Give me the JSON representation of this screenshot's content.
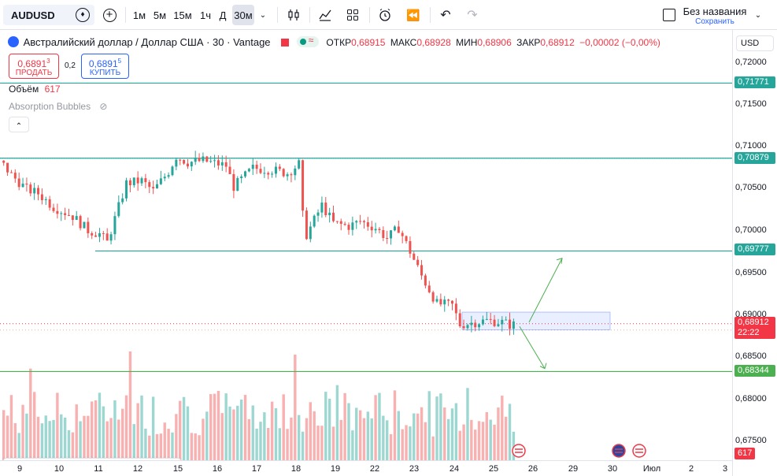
{
  "toolbar": {
    "symbol": "AUDUSD",
    "intervals": [
      "1м",
      "5м",
      "15м",
      "1ч",
      "Д",
      "30м"
    ],
    "active_interval": "30м",
    "layout_name": "Без названия",
    "save_label": "Сохранить"
  },
  "legend": {
    "title": "Австралийский доллар / Доллар США · 30 · Vantage",
    "open_label": "ОТКР",
    "open": "0,68915",
    "high_label": "МАКС",
    "high": "0,68928",
    "low_label": "МИН",
    "low": "0,68906",
    "close_label": "ЗАКР",
    "close": "0,68912",
    "change": "−0,00002 (−0,00%)",
    "sell_price": "0,6891",
    "sell_price_sup": "3",
    "sell_label": "ПРОДАТЬ",
    "spread": "0,2",
    "buy_price": "0,6891",
    "buy_price_sup": "5",
    "buy_label": "КУПИТЬ",
    "volume_label": "Объём",
    "volume_value": "617",
    "indicator": "Absorption Bubbles"
  },
  "price_scale": {
    "currency": "USD",
    "labels": [
      "0,72000",
      "0,71500",
      "0,71000",
      "0,70500",
      "0,70000",
      "0,69500",
      "0,69000",
      "0,68500",
      "0,68000",
      "0,67500"
    ]
  },
  "levels": [
    {
      "price": "0,71771",
      "color": "#26a69a"
    },
    {
      "price": "0,70879",
      "color": "#26a69a"
    },
    {
      "price": "0,69777",
      "color": "#26a69a"
    },
    {
      "price": "0,68344",
      "color": "#4caf50"
    }
  ],
  "current": {
    "price": "0,68912",
    "countdown": "22:22",
    "color": "#f23645"
  },
  "volume_tag": "617",
  "time_axis": [
    "9",
    "10",
    "11",
    "12",
    "15",
    "16",
    "17",
    "18",
    "19",
    "22",
    "23",
    "24",
    "25",
    "26",
    "29",
    "30",
    "Июл",
    "2",
    "3"
  ],
  "colors": {
    "up": "#26a69a",
    "down": "#ef5350",
    "level": "#26a69a",
    "support": "#4caf50",
    "accent": "#2962ff"
  },
  "chart_data": {
    "type": "candlestick",
    "symbol": "AUDUSD",
    "interval": "30",
    "yrange": [
      0.675,
      0.7235
    ],
    "key_levels": [
      0.71771,
      0.70879,
      0.69777,
      0.68344
    ],
    "last_price": 0.68912,
    "path": [
      [
        0,
        0.7085
      ],
      [
        3,
        0.7068
      ],
      [
        7,
        0.7051
      ],
      [
        10,
        0.7046
      ],
      [
        14,
        0.703
      ],
      [
        19,
        0.7019
      ],
      [
        23,
        0.7002
      ],
      [
        26,
        0.6998
      ],
      [
        28,
        0.6988
      ],
      [
        29,
        0.7002
      ],
      [
        33,
        0.7058
      ],
      [
        37,
        0.7061
      ],
      [
        40,
        0.7049
      ],
      [
        44,
        0.7072
      ],
      [
        46,
        0.709
      ],
      [
        49,
        0.7083
      ],
      [
        53,
        0.7085
      ],
      [
        59,
        0.7079
      ],
      [
        61,
        0.7054
      ],
      [
        66,
        0.7076
      ],
      [
        71,
        0.7074
      ],
      [
        75,
        0.707
      ],
      [
        78,
        0.7081
      ],
      [
        79,
        0.702
      ],
      [
        80,
        0.6997
      ],
      [
        84,
        0.7032
      ],
      [
        87,
        0.7011
      ],
      [
        91,
        0.7007
      ],
      [
        94,
        0.7013
      ],
      [
        98,
        0.7005
      ],
      [
        101,
        0.6993
      ],
      [
        104,
        0.7005
      ],
      [
        107,
        0.6977
      ],
      [
        110,
        0.6948
      ],
      [
        114,
        0.6915
      ],
      [
        118,
        0.6913
      ],
      [
        120,
        0.689
      ],
      [
        124,
        0.6893
      ],
      [
        127,
        0.6895
      ],
      [
        131,
        0.6893
      ],
      [
        133,
        0.689
      ]
    ],
    "bars": 134
  }
}
